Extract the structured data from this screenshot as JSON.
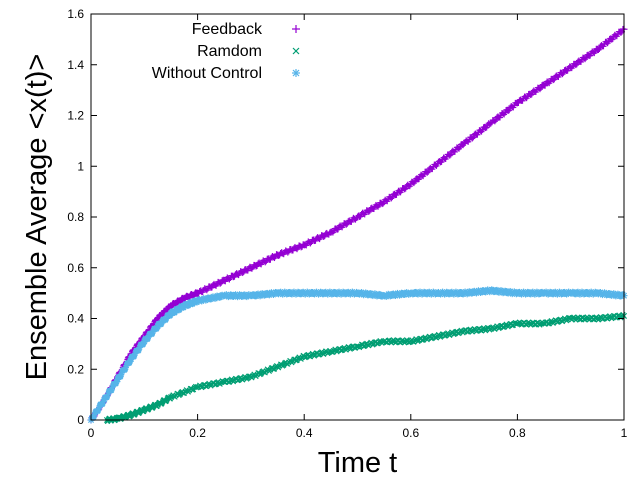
{
  "chart_data": {
    "type": "scatter",
    "xlabel": "Time t",
    "ylabel": "Ensemble Average <x(t)>",
    "xlim": [
      0,
      1
    ],
    "ylim": [
      0,
      1.6
    ],
    "xticks": [
      0,
      0.2,
      0.4,
      0.6,
      0.8,
      1
    ],
    "xtick_labels": [
      "0",
      "0.2",
      "0.4",
      "0.6",
      "0.8",
      "1"
    ],
    "yticks": [
      0,
      0.2,
      0.4,
      0.6,
      0.8,
      1,
      1.2,
      1.4,
      1.6
    ],
    "ytick_labels": [
      "0",
      "0.2",
      "0.4",
      "0.6",
      "0.8",
      "1",
      "1.2",
      "1.4",
      "1.6"
    ],
    "grid": false,
    "legend_position": "top-center",
    "series": [
      {
        "name": "Feedback",
        "marker": "plus",
        "color": "#9400d3",
        "x": [
          0,
          0.025,
          0.05,
          0.075,
          0.1,
          0.125,
          0.15,
          0.175,
          0.2,
          0.25,
          0.3,
          0.35,
          0.4,
          0.45,
          0.5,
          0.55,
          0.6,
          0.65,
          0.7,
          0.75,
          0.8,
          0.85,
          0.9,
          0.95,
          1.0
        ],
        "values": [
          0,
          0.08,
          0.17,
          0.26,
          0.33,
          0.4,
          0.45,
          0.48,
          0.5,
          0.55,
          0.6,
          0.65,
          0.69,
          0.74,
          0.8,
          0.86,
          0.93,
          1.01,
          1.09,
          1.17,
          1.25,
          1.32,
          1.39,
          1.46,
          1.54
        ]
      },
      {
        "name": "Ramdom",
        "marker": "cross",
        "color": "#009e73",
        "x": [
          0.03,
          0.05,
          0.075,
          0.1,
          0.125,
          0.15,
          0.2,
          0.25,
          0.3,
          0.35,
          0.4,
          0.45,
          0.5,
          0.55,
          0.6,
          0.65,
          0.7,
          0.75,
          0.8,
          0.85,
          0.9,
          0.95,
          1.0
        ],
        "values": [
          0,
          0.005,
          0.02,
          0.04,
          0.06,
          0.09,
          0.13,
          0.15,
          0.17,
          0.21,
          0.25,
          0.27,
          0.29,
          0.31,
          0.31,
          0.33,
          0.35,
          0.36,
          0.38,
          0.38,
          0.4,
          0.4,
          0.41
        ]
      },
      {
        "name": "Without Control",
        "marker": "star",
        "color": "#56b4e9",
        "x": [
          0,
          0.025,
          0.05,
          0.075,
          0.1,
          0.125,
          0.15,
          0.175,
          0.2,
          0.25,
          0.3,
          0.35,
          0.4,
          0.45,
          0.5,
          0.55,
          0.6,
          0.65,
          0.7,
          0.75,
          0.8,
          0.85,
          0.9,
          0.95,
          1.0
        ],
        "values": [
          0,
          0.08,
          0.16,
          0.24,
          0.31,
          0.37,
          0.42,
          0.45,
          0.47,
          0.49,
          0.49,
          0.5,
          0.5,
          0.5,
          0.5,
          0.49,
          0.5,
          0.5,
          0.5,
          0.51,
          0.5,
          0.5,
          0.5,
          0.5,
          0.49
        ]
      }
    ]
  }
}
